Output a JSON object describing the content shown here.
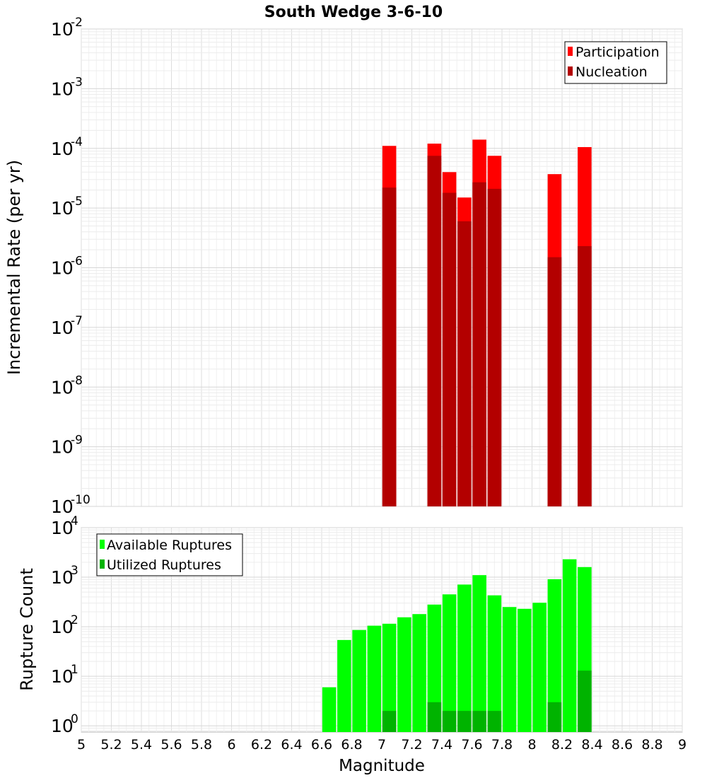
{
  "chart_data": [
    {
      "type": "bar",
      "title": "South Wedge 3-6-10",
      "ylabel": "Incremental Rate (per yr)",
      "xlabel": "",
      "yscale": "log",
      "ylim": [
        1e-10,
        0.01
      ],
      "xlim": [
        5,
        9
      ],
      "grid": true,
      "bar_mode": "overlay",
      "legend_position": "top-right",
      "y_ticks": [
        {
          "base": "10",
          "exp": "-10",
          "value": 1e-10
        },
        {
          "base": "10",
          "exp": "-9",
          "value": 1e-09
        },
        {
          "base": "10",
          "exp": "-8",
          "value": 1e-08
        },
        {
          "base": "10",
          "exp": "-7",
          "value": 1e-07
        },
        {
          "base": "10",
          "exp": "-6",
          "value": 1e-06
        },
        {
          "base": "10",
          "exp": "-5",
          "value": 1e-05
        },
        {
          "base": "10",
          "exp": "-4",
          "value": 0.0001
        },
        {
          "base": "10",
          "exp": "-3",
          "value": 0.001
        },
        {
          "base": "10",
          "exp": "-2",
          "value": 0.01
        }
      ],
      "series": [
        {
          "name": "Participation",
          "color": "#ff0000",
          "x": [
            7.05,
            7.35,
            7.45,
            7.55,
            7.65,
            7.75,
            8.15,
            8.35
          ],
          "values": [
            0.00011,
            0.00012,
            4e-05,
            1.5e-05,
            0.00014,
            7.5e-05,
            3.7e-05,
            0.000105
          ]
        },
        {
          "name": "Nucleation",
          "color": "#b30000",
          "x": [
            7.05,
            7.35,
            7.45,
            7.55,
            7.65,
            7.75,
            8.15,
            8.35
          ],
          "values": [
            2.2e-05,
            7.5e-05,
            1.8e-05,
            6e-06,
            2.7e-05,
            2.1e-05,
            1.5e-06,
            2.3e-06
          ]
        }
      ]
    },
    {
      "type": "bar",
      "title": "",
      "ylabel": "Rupture Count",
      "xlabel": "Magnitude",
      "yscale": "log",
      "ylim": [
        0.75,
        10000
      ],
      "xlim": [
        5,
        9
      ],
      "grid": true,
      "bar_mode": "overlay",
      "legend_position": "top-left",
      "y_ticks": [
        {
          "base": "10",
          "exp": "0",
          "value": 1
        },
        {
          "base": "10",
          "exp": "1",
          "value": 10
        },
        {
          "base": "10",
          "exp": "2",
          "value": 100
        },
        {
          "base": "10",
          "exp": "3",
          "value": 1000
        },
        {
          "base": "10",
          "exp": "4",
          "value": 10000
        }
      ],
      "x_ticks": [
        "5",
        "5.2",
        "5.4",
        "5.6",
        "5.8",
        "6",
        "6.2",
        "6.4",
        "6.6",
        "6.8",
        "7",
        "7.2",
        "7.4",
        "7.6",
        "7.8",
        "8",
        "8.2",
        "8.4",
        "8.6",
        "8.8",
        "9"
      ],
      "series": [
        {
          "name": "Available Ruptures",
          "color": "#00ff00",
          "x": [
            6.65,
            6.75,
            6.85,
            6.95,
            7.05,
            7.15,
            7.25,
            7.35,
            7.45,
            7.55,
            7.65,
            7.75,
            7.85,
            7.95,
            8.05,
            8.15,
            8.25,
            8.35
          ],
          "values": [
            6,
            54,
            86,
            105,
            115,
            155,
            180,
            280,
            450,
            710,
            1100,
            430,
            250,
            230,
            305,
            910,
            2300,
            1600
          ]
        },
        {
          "name": "Utilized Ruptures",
          "color": "#00b300",
          "x": [
            7.05,
            7.35,
            7.45,
            7.55,
            7.65,
            7.75,
            8.15,
            8.35
          ],
          "values": [
            2,
            3,
            2,
            2,
            2,
            2,
            3,
            13
          ]
        }
      ]
    }
  ]
}
